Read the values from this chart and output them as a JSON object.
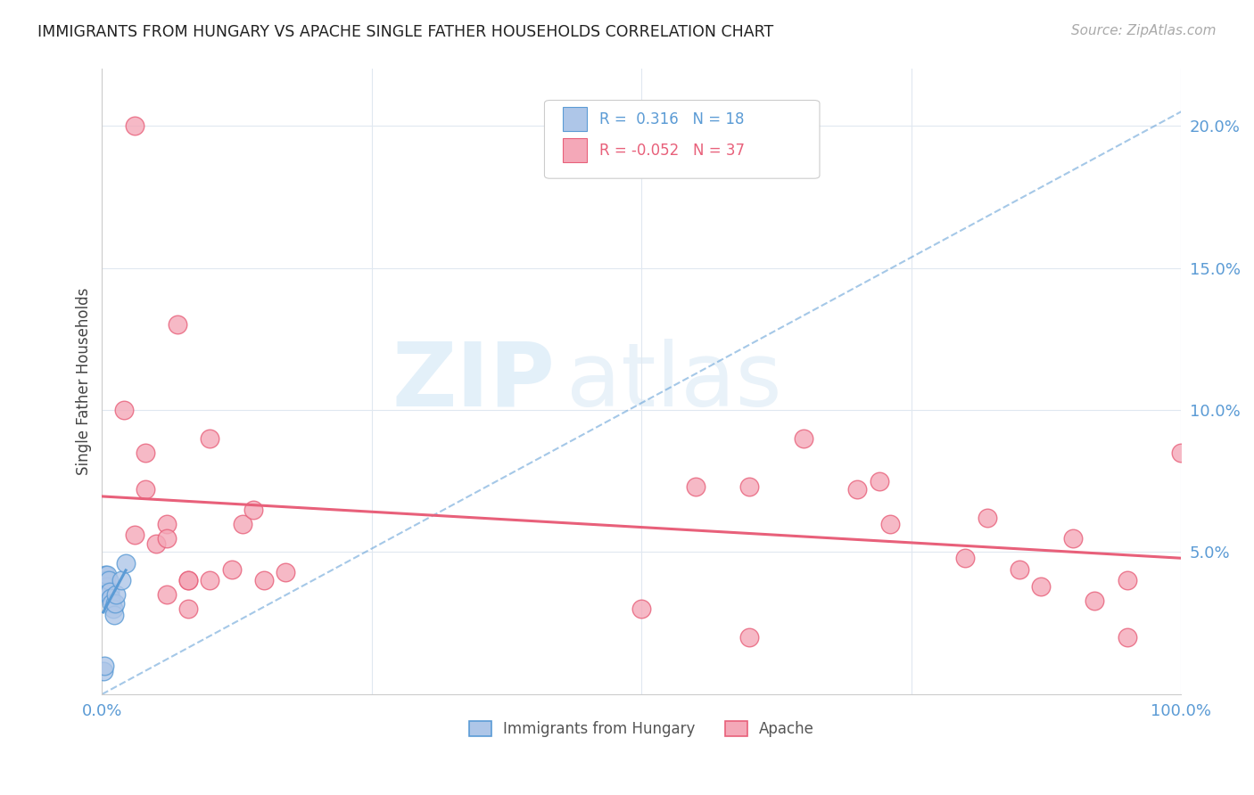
{
  "title": "IMMIGRANTS FROM HUNGARY VS APACHE SINGLE FATHER HOUSEHOLDS CORRELATION CHART",
  "source": "Source: ZipAtlas.com",
  "ylabel": "Single Father Households",
  "xlim": [
    0,
    1.0
  ],
  "ylim": [
    0,
    0.22
  ],
  "blue_R": 0.316,
  "blue_N": 18,
  "pink_R": -0.052,
  "pink_N": 37,
  "blue_color": "#aec6e8",
  "pink_color": "#f4a8b8",
  "blue_edge": "#5b9bd5",
  "pink_edge": "#e8607a",
  "trend_blue_color": "#5b9bd5",
  "trend_pink_color": "#e8607a",
  "watermark_zip": "ZIP",
  "watermark_atlas": "atlas",
  "legend_label_blue": "Immigrants from Hungary",
  "legend_label_pink": "Apache",
  "blue_points_x": [
    0.001,
    0.002,
    0.003,
    0.003,
    0.004,
    0.004,
    0.005,
    0.005,
    0.006,
    0.007,
    0.008,
    0.009,
    0.01,
    0.011,
    0.012,
    0.013,
    0.018,
    0.022
  ],
  "blue_points_y": [
    0.008,
    0.01,
    0.038,
    0.042,
    0.04,
    0.036,
    0.038,
    0.042,
    0.04,
    0.036,
    0.034,
    0.032,
    0.03,
    0.028,
    0.032,
    0.035,
    0.04,
    0.046
  ],
  "pink_points_x": [
    0.02,
    0.03,
    0.04,
    0.04,
    0.05,
    0.06,
    0.06,
    0.07,
    0.08,
    0.1,
    0.12,
    0.13,
    0.14,
    0.15,
    0.17,
    0.55,
    0.6,
    0.65,
    0.7,
    0.72,
    0.73,
    0.8,
    0.82,
    0.85,
    0.87,
    0.9,
    0.92,
    0.95,
    0.03,
    0.08,
    0.1,
    0.5,
    0.6,
    0.95,
    1.0,
    0.06,
    0.08
  ],
  "pink_points_y": [
    0.1,
    0.056,
    0.072,
    0.085,
    0.053,
    0.06,
    0.035,
    0.13,
    0.04,
    0.09,
    0.044,
    0.06,
    0.065,
    0.04,
    0.043,
    0.073,
    0.073,
    0.09,
    0.072,
    0.075,
    0.06,
    0.048,
    0.062,
    0.044,
    0.038,
    0.055,
    0.033,
    0.04,
    0.2,
    0.04,
    0.04,
    0.03,
    0.02,
    0.02,
    0.085,
    0.055,
    0.03
  ],
  "dashed_line_x": [
    0.0,
    1.0
  ],
  "dashed_line_y": [
    0.0,
    0.205
  ]
}
